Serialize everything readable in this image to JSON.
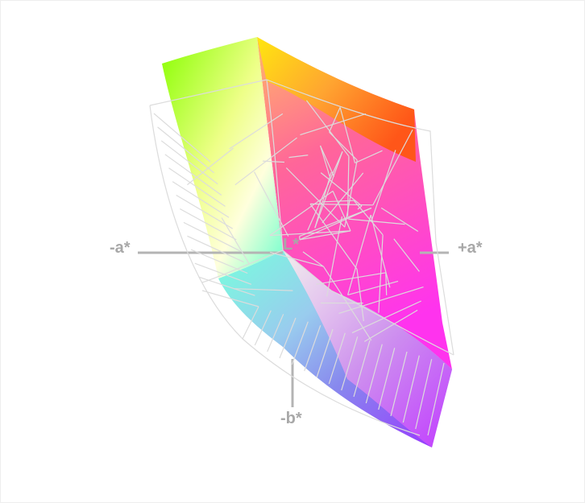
{
  "axes": {
    "neg_a": "-a*",
    "pos_a": "+a*",
    "lightness": "L*",
    "neg_b": "-b*"
  },
  "colors": {
    "axis": "#b4b4b4",
    "wireframe": "#d8d8d8",
    "green": "#88ff00",
    "yellow": "#ffff00",
    "orange": "#ff6600",
    "magenta": "#ff33dd",
    "purple": "#9933ff",
    "cyan": "#66ffdd",
    "blue": "#8899ee"
  }
}
